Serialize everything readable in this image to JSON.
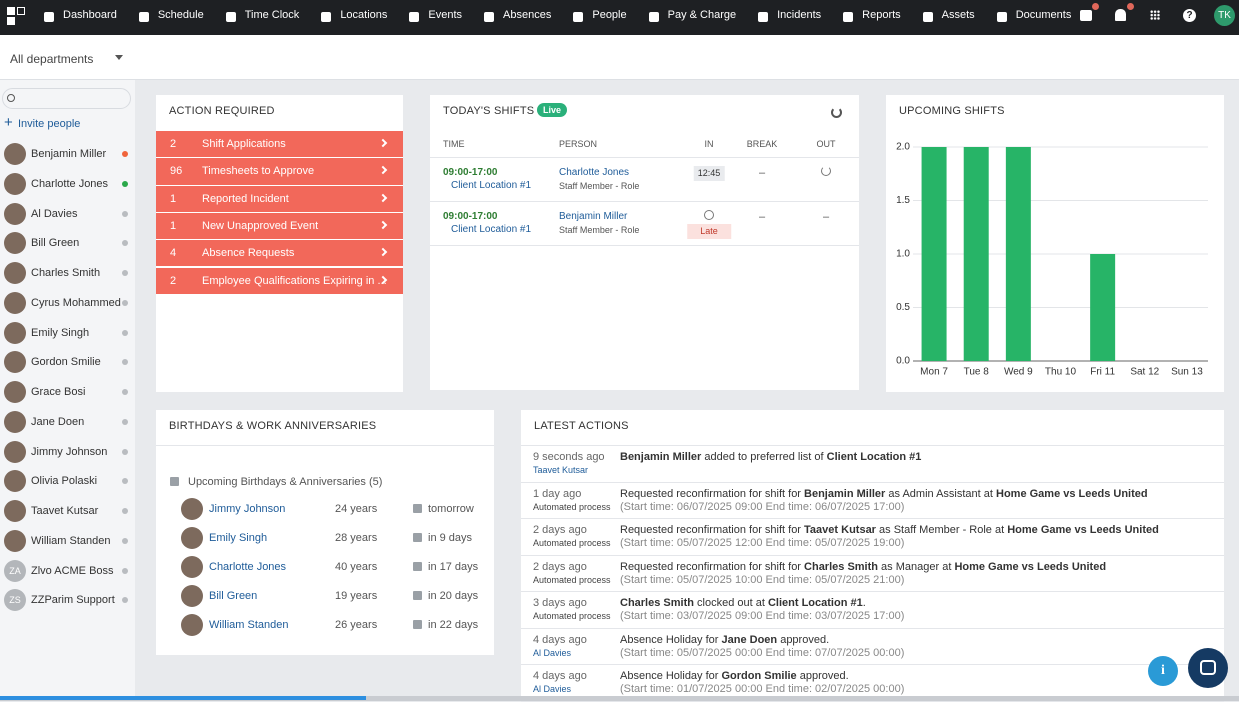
{
  "nav": {
    "items": [
      "Dashboard",
      "Schedule",
      "Time Clock",
      "Locations",
      "Events",
      "Absences",
      "People",
      "Pay & Charge",
      "Incidents",
      "Reports",
      "Assets",
      "Documents"
    ],
    "user": "TK"
  },
  "filter": {
    "label": "All departments"
  },
  "sidebar": {
    "invite": "Invite people",
    "people": [
      {
        "name": "Benjamin Miller",
        "status_color": "#f0643c"
      },
      {
        "name": "Charlotte Jones",
        "status_color": "#2aa84a"
      },
      {
        "name": "Al Davies",
        "status_color": "#b9bcc0"
      },
      {
        "name": "Bill Green",
        "status_color": "#b9bcc0"
      },
      {
        "name": "Charles Smith",
        "status_color": "#b9bcc0"
      },
      {
        "name": "Cyrus Mohammed",
        "status_color": "#b9bcc0"
      },
      {
        "name": "Emily Singh",
        "status_color": "#b9bcc0"
      },
      {
        "name": "Gordon Smilie",
        "status_color": "#b9bcc0"
      },
      {
        "name": "Grace Bosi",
        "status_color": "#b9bcc0"
      },
      {
        "name": "Jane Doen",
        "status_color": "#b9bcc0"
      },
      {
        "name": "Jimmy Johnson",
        "status_color": "#b9bcc0"
      },
      {
        "name": "Olivia Polaski",
        "status_color": "#b9bcc0"
      },
      {
        "name": "Taavet Kutsar",
        "status_color": "#b9bcc0"
      },
      {
        "name": "William Standen",
        "status_color": "#b9bcc0"
      },
      {
        "name": "Zlvo ACME Boss",
        "initials": "ZA",
        "status_color": "#b9bcc0"
      },
      {
        "name": "ZZParim Support",
        "initials": "ZS",
        "status_color": "#b9bcc0"
      }
    ]
  },
  "action_required": {
    "title": "Action Required",
    "color": "#f2685a",
    "items": [
      {
        "count": 2,
        "label": "Shift Applications"
      },
      {
        "count": 96,
        "label": "Timesheets to Approve"
      },
      {
        "count": 1,
        "label": "Reported Incident"
      },
      {
        "count": 1,
        "label": "New Unapproved Event"
      },
      {
        "count": 4,
        "label": "Absence Requests"
      },
      {
        "count": 2,
        "label": "Employee Qualifications Expiring in ..."
      }
    ]
  },
  "todays_shifts": {
    "title": "Today's Shifts",
    "badge": "Live",
    "columns": [
      "TIME",
      "PERSON",
      "IN",
      "BREAK",
      "OUT"
    ],
    "rows": [
      {
        "time": "09:00-17:00",
        "location": "Client Location #1",
        "person": "Charlotte Jones",
        "role": "Staff Member - Role",
        "in": "12:45",
        "break": "–"
      },
      {
        "time": "09:00-17:00",
        "location": "Client Location #1",
        "person": "Benjamin Miller",
        "role": "Staff Member - Role",
        "status": "Late",
        "break": "–",
        "out": "–"
      }
    ]
  },
  "upcoming_shifts": {
    "title": "Upcoming Shifts",
    "chart": {
      "type": "bar",
      "categories": [
        "Mon 7",
        "Tue 8",
        "Wed 9",
        "Thu 10",
        "Fri 11",
        "Sat 12",
        "Sun 13"
      ],
      "values": [
        2,
        2,
        2,
        0,
        1,
        0,
        0
      ],
      "color": "#27b467",
      "ylim": [
        0,
        2
      ],
      "yticks": [
        {
          "value": 0,
          "label": "0.0"
        },
        {
          "value": 0.5,
          "label": "0.5"
        },
        {
          "value": 1,
          "label": "1.0"
        },
        {
          "value": 1.5,
          "label": "1.5"
        },
        {
          "value": 2,
          "label": "2.0"
        }
      ],
      "grid": true
    }
  },
  "birthdays": {
    "title": "Birthdays & Work Anniversaries",
    "subtitle": "Upcoming Birthdays & Anniversaries (5)",
    "rows": [
      {
        "name": "Jimmy Johnson",
        "years": "24 years",
        "when": "tomorrow"
      },
      {
        "name": "Emily Singh",
        "years": "28 years",
        "when": "in 9 days"
      },
      {
        "name": "Charlotte Jones",
        "years": "40 years",
        "when": "in 17 days"
      },
      {
        "name": "Bill Green",
        "years": "19 years",
        "when": "in 20 days"
      },
      {
        "name": "William Standen",
        "years": "26 years",
        "when": "in 22 days"
      }
    ]
  },
  "latest_actions": {
    "title": "Latest Actions",
    "rows": [
      {
        "time": "9 seconds ago",
        "actor": "Taavet Kutsar",
        "actor_color": "#1f5c99",
        "parts": [
          {
            "text": "Benjamin Miller",
            "bold": true
          },
          {
            "text": " added to preferred list of "
          },
          {
            "text": "Client Location #1",
            "bold": true
          }
        ]
      },
      {
        "time": "1 day ago",
        "actor": "Automated process",
        "actor_color": "#444",
        "parts": [
          {
            "text": "Requested reconfirmation for shift for "
          },
          {
            "text": "Benjamin Miller",
            "bold": true
          },
          {
            "text": " as Admin Assistant at "
          },
          {
            "text": "Home Game vs Leeds United",
            "bold": true
          }
        ],
        "detail": "(Start time: 06/07/2025 09:00 End time: 06/07/2025 17:00)"
      },
      {
        "time": "2 days ago",
        "actor": "Automated process",
        "actor_color": "#444",
        "parts": [
          {
            "text": "Requested reconfirmation for shift for "
          },
          {
            "text": "Taavet Kutsar",
            "bold": true
          },
          {
            "text": " as Staff Member - Role at "
          },
          {
            "text": "Home Game vs Leeds United",
            "bold": true
          }
        ],
        "detail": "(Start time: 05/07/2025 12:00 End time: 05/07/2025 19:00)"
      },
      {
        "time": "2 days ago",
        "actor": "Automated process",
        "actor_color": "#444",
        "parts": [
          {
            "text": "Requested reconfirmation for shift for "
          },
          {
            "text": "Charles Smith",
            "bold": true
          },
          {
            "text": " as Manager at "
          },
          {
            "text": "Home Game vs Leeds United",
            "bold": true
          }
        ],
        "detail": "(Start time: 05/07/2025 10:00 End time: 05/07/2025 21:00)"
      },
      {
        "time": "3 days ago",
        "actor": "Automated process",
        "actor_color": "#444",
        "parts": [
          {
            "text": "Charles Smith",
            "bold": true
          },
          {
            "text": " clocked out at "
          },
          {
            "text": "Client Location #1",
            "bold": true
          },
          {
            "text": "."
          }
        ],
        "detail": "(Start time: 03/07/2025 09:00 End time: 03/07/2025 17:00)"
      },
      {
        "time": "4 days ago",
        "actor": "Al Davies",
        "actor_color": "#1f5c99",
        "parts": [
          {
            "text": "Absence Holiday for "
          },
          {
            "text": "Jane Doen",
            "bold": true
          },
          {
            "text": " approved."
          }
        ],
        "detail": "(Start time: 05/07/2025 00:00 End time: 07/07/2025 00:00)"
      },
      {
        "time": "4 days ago",
        "actor": "Al Davies",
        "actor_color": "#1f5c99",
        "parts": [
          {
            "text": "Absence Holiday for "
          },
          {
            "text": "Gordon Smilie",
            "bold": true
          },
          {
            "text": " approved."
          }
        ],
        "detail": "(Start time: 01/07/2025 00:00 End time: 02/07/2025 00:00)"
      }
    ]
  }
}
